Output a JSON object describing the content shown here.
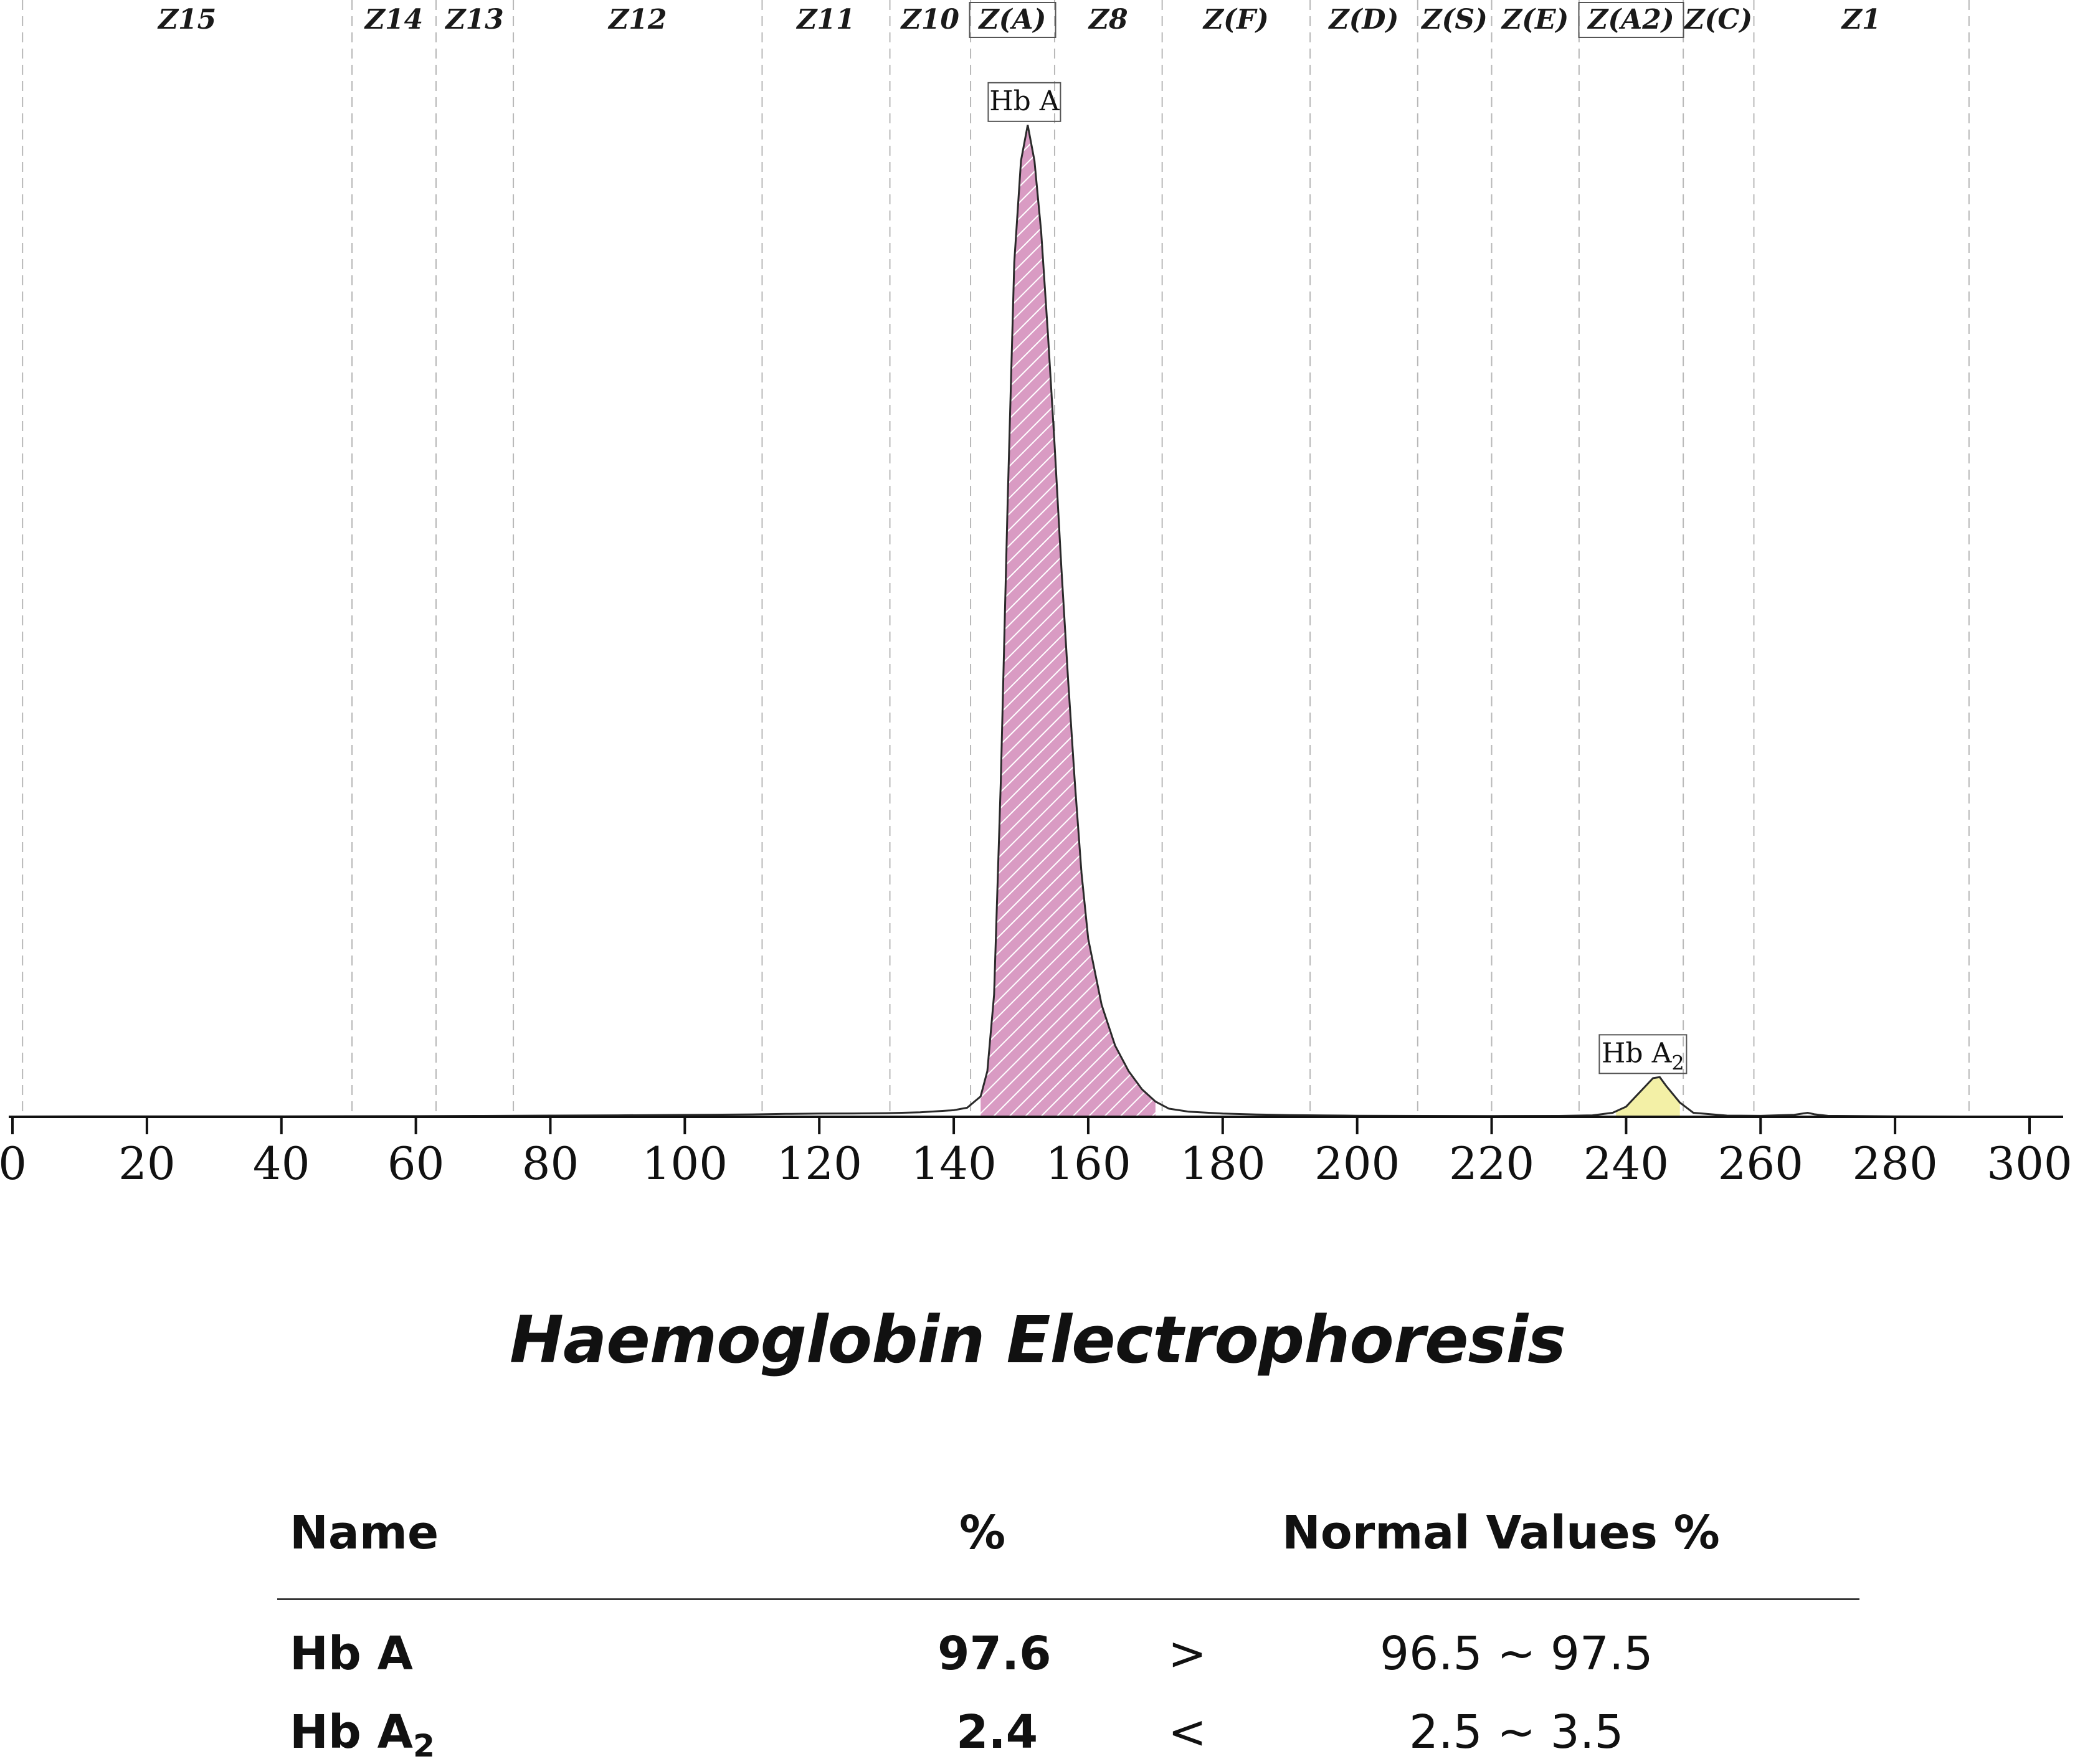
{
  "chart_data": {
    "type": "line",
    "xlim": [
      0,
      300
    ],
    "x_ticks": [
      "0",
      "20",
      "40",
      "60",
      "80",
      "100",
      "120",
      "140",
      "160",
      "180",
      "200",
      "220",
      "240",
      "260",
      "280",
      "300"
    ],
    "zones": [
      {
        "label": "Z15",
        "from": 1.5,
        "to": 50.5,
        "boxed": false
      },
      {
        "label": "Z14",
        "from": 50.5,
        "to": 63.0,
        "boxed": false
      },
      {
        "label": "Z13",
        "from": 63.0,
        "to": 74.5,
        "boxed": false
      },
      {
        "label": "Z12",
        "from": 74.5,
        "to": 111.5,
        "boxed": false
      },
      {
        "label": "Z11",
        "from": 111.5,
        "to": 130.5,
        "boxed": false
      },
      {
        "label": "Z10",
        "from": 130.5,
        "to": 142.5,
        "boxed": false
      },
      {
        "label": "Z(A)",
        "from": 142.5,
        "to": 155.0,
        "boxed": true
      },
      {
        "label": "Z8",
        "from": 155.0,
        "to": 171.0,
        "boxed": false
      },
      {
        "label": "Z(F)",
        "from": 171.0,
        "to": 193.0,
        "boxed": false
      },
      {
        "label": "Z(D)",
        "from": 193.0,
        "to": 209.0,
        "boxed": false
      },
      {
        "label": "Z(S)",
        "from": 209.0,
        "to": 220.0,
        "boxed": false
      },
      {
        "label": "Z(E)",
        "from": 220.0,
        "to": 233.0,
        "boxed": false
      },
      {
        "label": "Z(A2)",
        "from": 233.0,
        "to": 248.5,
        "boxed": true
      },
      {
        "label": "Z(C)",
        "from": 248.5,
        "to": 259.0,
        "boxed": false
      },
      {
        "label": "Z1",
        "from": 259.0,
        "to": 291.0,
        "boxed": false
      }
    ],
    "zone_boundaries": [
      1.5,
      50.5,
      63.0,
      74.5,
      111.5,
      130.5,
      142.5,
      155.0,
      171.0,
      193.0,
      209.0,
      220.0,
      233.0,
      248.5,
      259.0,
      291.0
    ],
    "trace": {
      "x": [
        0,
        10,
        20,
        30,
        40,
        50,
        60,
        70,
        75,
        80,
        90,
        100,
        110,
        115,
        120,
        125,
        130,
        135,
        140,
        142,
        144,
        145,
        146,
        147,
        148,
        149,
        150,
        151,
        152,
        153,
        154,
        155,
        156,
        157,
        158,
        159,
        160,
        162,
        164,
        166,
        168,
        170,
        172,
        175,
        180,
        185,
        190,
        195,
        200,
        210,
        220,
        230,
        235,
        238,
        240,
        241,
        242,
        243,
        244,
        245,
        246,
        248,
        250,
        255,
        260,
        265,
        267,
        268,
        270,
        280,
        290
      ],
      "y": [
        0.3,
        0.4,
        0.5,
        0.4,
        0.5,
        0.6,
        0.7,
        0.9,
        1.1,
        1.2,
        1.5,
        1.9,
        2.4,
        2.9,
        3.2,
        3.3,
        3.6,
        4.4,
        6.5,
        9,
        20,
        45,
        120,
        330,
        600,
        840,
        940,
        975,
        940,
        870,
        770,
        660,
        540,
        430,
        330,
        240,
        175,
        110,
        70,
        45,
        27,
        15,
        8,
        5,
        3.2,
        2.3,
        1.7,
        1.4,
        1.1,
        0.9,
        0.8,
        0.9,
        1.5,
        4,
        10,
        17,
        24,
        31,
        38,
        39,
        30,
        14,
        4,
        1.2,
        1.0,
        2.0,
        4.0,
        2.5,
        1.0,
        0.5,
        0.3
      ]
    },
    "peaks": [
      {
        "name": "Hb A",
        "x_from": 144,
        "x_to": 170,
        "fill": "#d99bc3",
        "hatched": true,
        "label": "Hb A",
        "label_x": 150.5
      },
      {
        "name": "Hb A2",
        "x_from": 238.5,
        "x_to": 248.0,
        "fill": "#f3f0a6",
        "hatched": false,
        "label": "Hb A",
        "label_sub": "2",
        "label_x": 242.5
      }
    ],
    "grid": {
      "x_zone_lines": true,
      "style": "dashed"
    },
    "ylim": [
      0,
      1000
    ],
    "title": "Haemoglobin Electrophoresis"
  },
  "colors": {
    "trace": "#2a2a2a",
    "zone_line": "#b8b8b8",
    "hb_a_fill": "#d99bc3",
    "hb_a2_fill": "#f3f0a6"
  },
  "table": {
    "headers": {
      "name": "Name",
      "percent": "%",
      "normal": "Normal Values %"
    },
    "rows": [
      {
        "name": "Hb A",
        "name_sub": "",
        "percent": "97.6",
        "comparator": ">",
        "normal": "96.5 ~ 97.5"
      },
      {
        "name": "Hb A",
        "name_sub": "2",
        "percent": "2.4",
        "comparator": "<",
        "normal": "2.5 ~  3.5"
      }
    ]
  }
}
